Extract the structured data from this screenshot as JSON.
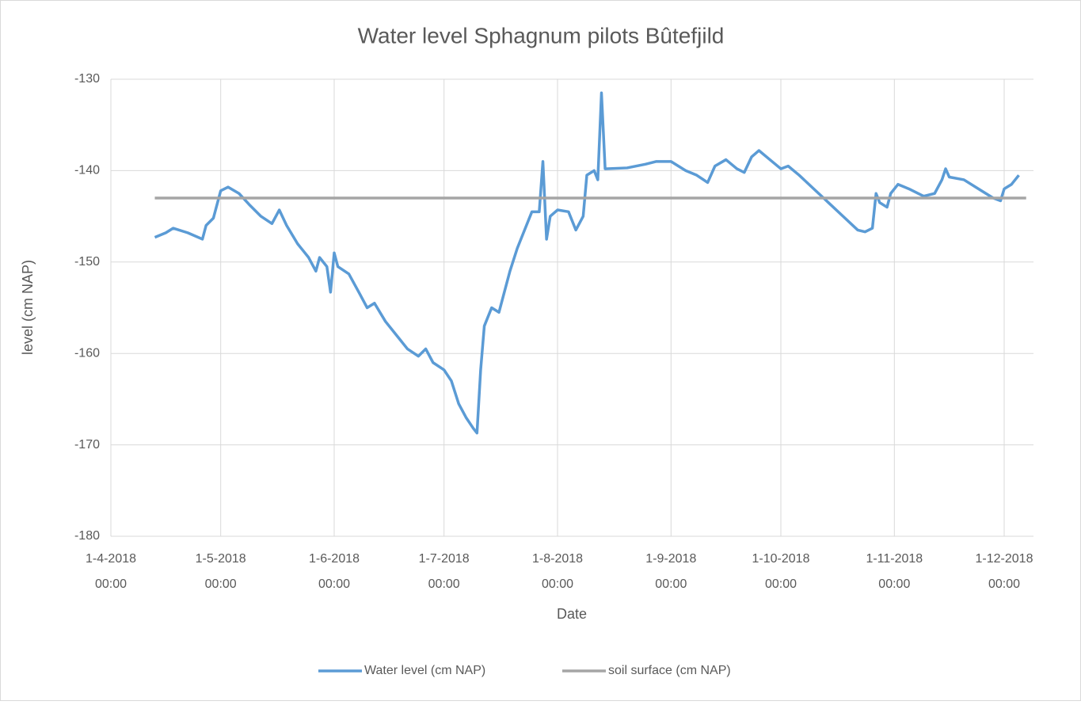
{
  "chart_data": {
    "type": "line",
    "title": "Water level Sphagnum pilots Bûtefjild",
    "x_label": "Date",
    "y_label": "level (cm NAP)",
    "xlim": [
      "2018-04-01",
      "2018-12-09"
    ],
    "xticks": [
      {
        "value": "2018-04-01",
        "label": "1-4-2018 00:00"
      },
      {
        "value": "2018-05-01",
        "label": "1-5-2018 00:00"
      },
      {
        "value": "2018-06-01",
        "label": "1-6-2018 00:00"
      },
      {
        "value": "2018-07-01",
        "label": "1-7-2018 00:00"
      },
      {
        "value": "2018-08-01",
        "label": "1-8-2018 00:00"
      },
      {
        "value": "2018-09-01",
        "label": "1-9-2018 00:00"
      },
      {
        "value": "2018-10-01",
        "label": "1-10-2018 00:00"
      },
      {
        "value": "2018-11-01",
        "label": "1-11-2018 00:00"
      },
      {
        "value": "2018-12-01",
        "label": "1-12-2018 00:00"
      }
    ],
    "ylim": [
      -180,
      -130
    ],
    "yticks": [
      -180,
      -170,
      -160,
      -150,
      -140,
      -130
    ],
    "grid": true,
    "legend": "bottom",
    "series": [
      {
        "name": "Water level (cm NAP)",
        "color": "#5b9bd5",
        "x": [
          "2018-04-13",
          "2018-04-16",
          "2018-04-18",
          "2018-04-22",
          "2018-04-26",
          "2018-04-27",
          "2018-04-29",
          "2018-05-01",
          "2018-05-03",
          "2018-05-06",
          "2018-05-09",
          "2018-05-12",
          "2018-05-15",
          "2018-05-17",
          "2018-05-19",
          "2018-05-22",
          "2018-05-25",
          "2018-05-27",
          "2018-05-28",
          "2018-05-30",
          "2018-05-31",
          "2018-06-01",
          "2018-06-02",
          "2018-06-05",
          "2018-06-08",
          "2018-06-10",
          "2018-06-12",
          "2018-06-15",
          "2018-06-18",
          "2018-06-21",
          "2018-06-24",
          "2018-06-26",
          "2018-06-28",
          "2018-07-01",
          "2018-07-03",
          "2018-07-05",
          "2018-07-07",
          "2018-07-09",
          "2018-07-10",
          "2018-07-11",
          "2018-07-12",
          "2018-07-14",
          "2018-07-16",
          "2018-07-17",
          "2018-07-19",
          "2018-07-21",
          "2018-07-23",
          "2018-07-25",
          "2018-07-27",
          "2018-07-28",
          "2018-07-29",
          "2018-07-30",
          "2018-08-01",
          "2018-08-04",
          "2018-08-06",
          "2018-08-08",
          "2018-08-09",
          "2018-08-11",
          "2018-08-12",
          "2018-08-13",
          "2018-08-14",
          "2018-08-20",
          "2018-08-25",
          "2018-08-28",
          "2018-09-01",
          "2018-09-05",
          "2018-09-08",
          "2018-09-11",
          "2018-09-13",
          "2018-09-16",
          "2018-09-19",
          "2018-09-21",
          "2018-09-23",
          "2018-09-25",
          "2018-09-28",
          "2018-10-01",
          "2018-10-03",
          "2018-10-06",
          "2018-10-10",
          "2018-10-14",
          "2018-10-18",
          "2018-10-22",
          "2018-10-24",
          "2018-10-26",
          "2018-10-27",
          "2018-10-28",
          "2018-10-30",
          "2018-10-31",
          "2018-11-02",
          "2018-11-05",
          "2018-11-09",
          "2018-11-12",
          "2018-11-14",
          "2018-11-15",
          "2018-11-16",
          "2018-11-20",
          "2018-11-24",
          "2018-11-28",
          "2018-11-30",
          "2018-12-01",
          "2018-12-03",
          "2018-12-05"
        ],
        "values": [
          -147.3,
          -146.8,
          -146.3,
          -146.8,
          -147.5,
          -146,
          -145.2,
          -142.2,
          -141.8,
          -142.5,
          -143.8,
          -145,
          -145.8,
          -144.3,
          -146,
          -148,
          -149.5,
          -151,
          -149.5,
          -150.5,
          -153.3,
          -149,
          -150.5,
          -151.3,
          -153.5,
          -155,
          -154.5,
          -156.5,
          -158,
          -159.5,
          -160.3,
          -159.5,
          -161,
          -161.8,
          -163,
          -165.5,
          -167,
          -168.2,
          -168.7,
          -161.8,
          -157,
          -155,
          -155.5,
          -154,
          -151,
          -148.5,
          -146.5,
          -144.5,
          -144.5,
          -139,
          -147.5,
          -145,
          -144.3,
          -144.5,
          -146.5,
          -145,
          -140.5,
          -140,
          -141,
          -131.5,
          -139.8,
          -139.7,
          -139.3,
          -139,
          -139,
          -140,
          -140.5,
          -141.3,
          -139.5,
          -138.8,
          -139.8,
          -140.2,
          -138.5,
          -137.8,
          -138.8,
          -139.8,
          -139.5,
          -140.5,
          -142,
          -143.5,
          -145,
          -146.5,
          -146.7,
          -146.3,
          -142.5,
          -143.5,
          -144,
          -142.5,
          -141.5,
          -142,
          -142.8,
          -142.5,
          -141,
          -139.8,
          -140.7,
          -141,
          -142,
          -143,
          -143.3,
          -142,
          -141.5,
          -140.5
        ]
      },
      {
        "name": "soil surface (cm NAP)",
        "color": "#a5a5a5",
        "x": [
          "2018-04-13",
          "2018-12-07"
        ],
        "values": [
          -143,
          -143
        ]
      }
    ]
  }
}
